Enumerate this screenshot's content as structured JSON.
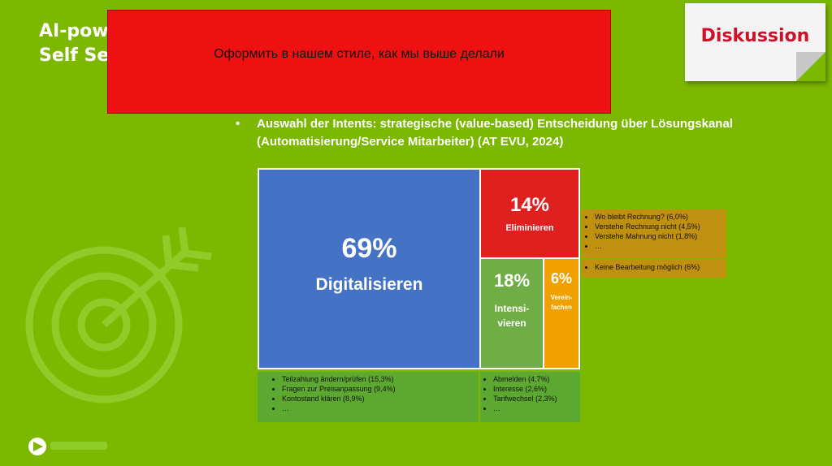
{
  "slide": {
    "title_line1": "AI-powe",
    "title_line2": "Self Ser",
    "red_banner_text": "Оформить в нашем стиле, как мы выше делали",
    "sticky_note_label": "Diskussion",
    "bullet_symbol": "•",
    "bullet_text": "Auswahl der Intents: strategische (value-based) Entscheidung über Lösungskanal (Automatisierung/Service Mitarbeiter) (AT EVU, 2024)",
    "icons": [
      "target-icon",
      "logo-icon"
    ]
  },
  "chart_data": {
    "type": "treemap",
    "cells": [
      {
        "label": "Digitalisieren",
        "value": 69,
        "value_text": "69%",
        "color": "#4472c4"
      },
      {
        "label": "Eliminieren",
        "value": 14,
        "value_text": "14%",
        "color": "#e01f1f"
      },
      {
        "label_line1": "Intensi-",
        "label_line2": "vieren",
        "value": 18,
        "value_text": "18%",
        "color": "#70ad47"
      },
      {
        "label_line1": "Verein-",
        "label_line2": "fachen",
        "value": 6,
        "value_text": "6%",
        "color": "#f0a000"
      }
    ],
    "notes": {
      "eliminieren": [
        "Wo bleibt Rechnung? (6,0%)",
        "Verstehe Rechnung nicht (4,5%)",
        "Verstehe Mahnung nicht (1,8%)",
        "…"
      ],
      "vereinfachen": [
        "Keine Bearbeitung möglich (6%)"
      ],
      "digitalisieren": [
        "Teilzahlung ändern/prüfen (15,3%)",
        "Fragen zur Preisanpassung (9,4%)",
        "Kontostand klären (8,9%)",
        "…"
      ],
      "intensivieren": [
        "Abmelden (4,7%)",
        "Interesse (2,6%)",
        "Tarifwechsel  (2,3%)",
        "…"
      ]
    }
  }
}
